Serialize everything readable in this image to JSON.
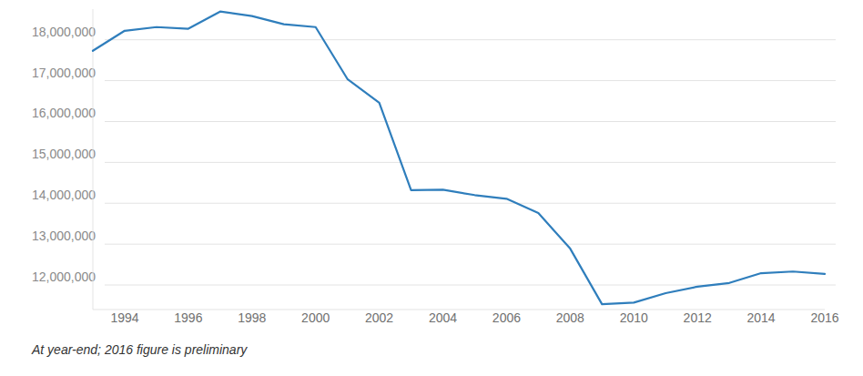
{
  "chart_data": {
    "type": "line",
    "x": [
      1993,
      1994,
      1995,
      1996,
      1997,
      1998,
      1999,
      2000,
      2001,
      2002,
      2003,
      2004,
      2005,
      2006,
      2007,
      2008,
      2009,
      2010,
      2011,
      2012,
      2013,
      2014,
      2015,
      2016
    ],
    "values": [
      17730000,
      18220000,
      18310000,
      18270000,
      18690000,
      18580000,
      18380000,
      18310000,
      17040000,
      16460000,
      14320000,
      14330000,
      14200000,
      14110000,
      13760000,
      12890000,
      11530000,
      11570000,
      11800000,
      11960000,
      12050000,
      12290000,
      12330000,
      12270000
    ],
    "color": "#2f7ebc",
    "xlim": [
      1993,
      2016
    ],
    "xticks": [
      1994,
      1996,
      1998,
      2000,
      2002,
      2004,
      2006,
      2008,
      2010,
      2012,
      2014,
      2016
    ],
    "ylim": [
      11400000,
      18750000
    ],
    "yticks": [
      {
        "value": 12000000,
        "label": "12,000,000"
      },
      {
        "value": 13000000,
        "label": "13,000,000"
      },
      {
        "value": 14000000,
        "label": "14,000,000"
      },
      {
        "value": 15000000,
        "label": "15,000,000"
      },
      {
        "value": 16000000,
        "label": "16,000,000"
      },
      {
        "value": 17000000,
        "label": "17,000,000"
      },
      {
        "value": 18000000,
        "label": "18,000,000"
      }
    ],
    "grid": true,
    "annotations": [
      "At year-end; 2016 figure is preliminary"
    ]
  }
}
